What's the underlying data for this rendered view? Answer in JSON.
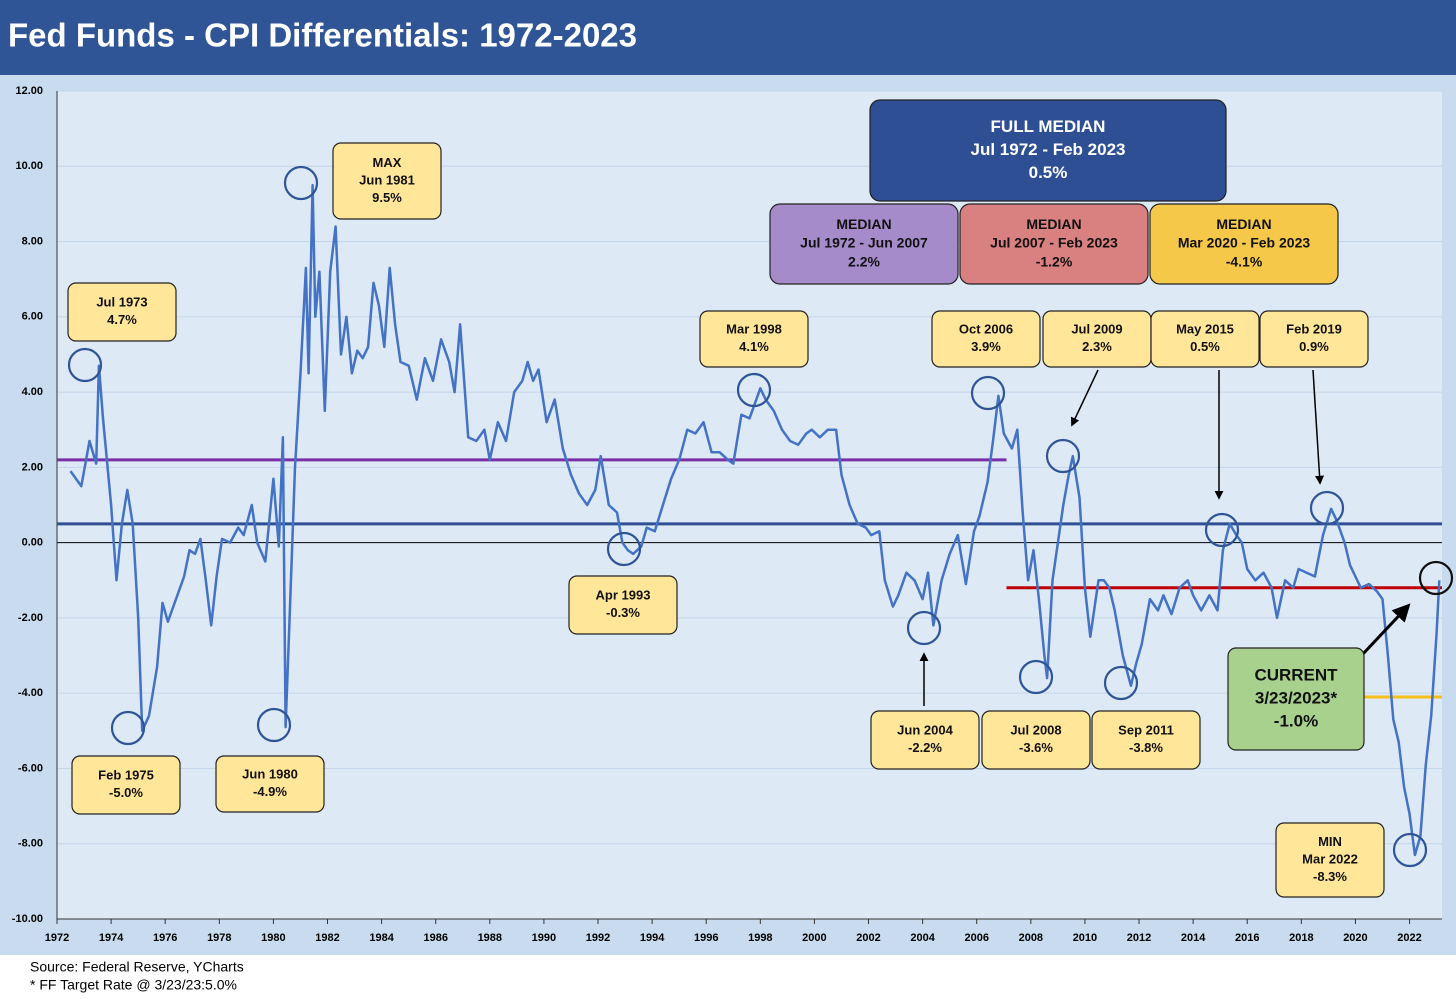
{
  "chart_data": {
    "type": "line",
    "title": "Fed Funds - CPI Differentials: 1972-2023",
    "color": "#4472c4",
    "xlim": [
      1972,
      2023.2
    ],
    "xticks": [
      1972,
      1974,
      1976,
      1978,
      1980,
      1982,
      1984,
      1986,
      1988,
      1990,
      1992,
      1994,
      1996,
      1998,
      2000,
      2002,
      2004,
      2006,
      2008,
      2010,
      2012,
      2014,
      2016,
      2018,
      2020,
      2022
    ],
    "ylim": [
      -10,
      12
    ],
    "yticks": [
      {
        "value": -10,
        "label": "-10.00"
      },
      {
        "value": -8,
        "label": "-8.00"
      },
      {
        "value": -6,
        "label": "-6.00"
      },
      {
        "value": -4,
        "label": "-4.00"
      },
      {
        "value": -2,
        "label": "-2.00"
      },
      {
        "value": 0,
        "label": "0.00"
      },
      {
        "value": 2,
        "label": "2.00"
      },
      {
        "value": 4,
        "label": "4.00"
      },
      {
        "value": 6,
        "label": "6.00"
      },
      {
        "value": 8,
        "label": "8.00"
      },
      {
        "value": 10,
        "label": "10.00"
      },
      {
        "value": 12,
        "label": "12.00"
      }
    ],
    "grid": true,
    "x": [
      1972.5,
      1972.9,
      1973.2,
      1973.45,
      1973.55,
      1973.7,
      1974.0,
      1974.2,
      1974.4,
      1974.6,
      1974.8,
      1975.0,
      1975.15,
      1975.4,
      1975.7,
      1975.9,
      1976.1,
      1976.4,
      1976.7,
      1976.9,
      1977.1,
      1977.3,
      1977.5,
      1977.7,
      1977.9,
      1978.1,
      1978.4,
      1978.7,
      1978.9,
      1979.2,
      1979.4,
      1979.7,
      1980.0,
      1980.2,
      1980.35,
      1980.45,
      1980.6,
      1980.8,
      1981.0,
      1981.2,
      1981.3,
      1981.45,
      1981.55,
      1981.7,
      1981.9,
      1982.1,
      1982.3,
      1982.5,
      1982.7,
      1982.9,
      1983.1,
      1983.3,
      1983.5,
      1983.7,
      1983.9,
      1984.1,
      1984.3,
      1984.5,
      1984.7,
      1985.0,
      1985.3,
      1985.6,
      1985.9,
      1986.2,
      1986.5,
      1986.7,
      1986.9,
      1987.2,
      1987.5,
      1987.8,
      1988.0,
      1988.3,
      1988.6,
      1988.9,
      1989.2,
      1989.4,
      1989.6,
      1989.8,
      1990.1,
      1990.4,
      1990.7,
      1991.0,
      1991.3,
      1991.6,
      1991.9,
      1992.1,
      1992.4,
      1992.7,
      1992.9,
      1993.1,
      1993.3,
      1993.6,
      1993.8,
      1994.1,
      1994.4,
      1994.7,
      1995.0,
      1995.3,
      1995.6,
      1995.9,
      1996.2,
      1996.5,
      1996.8,
      1997.0,
      1997.3,
      1997.6,
      1997.8,
      1998.0,
      1998.2,
      1998.5,
      1998.8,
      1999.1,
      1999.4,
      1999.7,
      1999.9,
      2000.2,
      2000.5,
      2000.8,
      2001.0,
      2001.3,
      2001.6,
      2001.9,
      2002.1,
      2002.4,
      2002.6,
      2002.9,
      2003.1,
      2003.4,
      2003.7,
      2004.0,
      2004.2,
      2004.4,
      2004.7,
      2005.0,
      2005.3,
      2005.6,
      2005.9,
      2006.1,
      2006.4,
      2006.6,
      2006.8,
      2007.0,
      2007.3,
      2007.5,
      2007.7,
      2007.9,
      2008.1,
      2008.3,
      2008.5,
      2008.6,
      2008.8,
      2009.0,
      2009.2,
      2009.4,
      2009.55,
      2009.8,
      2010.0,
      2010.2,
      2010.5,
      2010.7,
      2010.9,
      2011.1,
      2011.4,
      2011.7,
      2011.9,
      2012.1,
      2012.4,
      2012.7,
      2012.9,
      2013.2,
      2013.5,
      2013.8,
      2014.0,
      2014.3,
      2014.6,
      2014.9,
      2015.1,
      2015.35,
      2015.6,
      2015.8,
      2016.0,
      2016.3,
      2016.6,
      2016.9,
      2017.1,
      2017.4,
      2017.7,
      2017.9,
      2018.2,
      2018.5,
      2018.8,
      2019.1,
      2019.3,
      2019.6,
      2019.8,
      2020.0,
      2020.2,
      2020.5,
      2020.8,
      2021.0,
      2021.2,
      2021.4,
      2021.6,
      2021.8,
      2022.0,
      2022.2,
      2022.4,
      2022.6,
      2022.8,
      2023.0,
      2023.1
    ],
    "values": [
      1.9,
      1.5,
      2.7,
      2.1,
      4.7,
      3.3,
      1.0,
      -1.0,
      0.5,
      1.4,
      0.5,
      -2.0,
      -5.0,
      -4.6,
      -3.3,
      -1.6,
      -2.1,
      -1.5,
      -0.9,
      -0.2,
      -0.3,
      0.1,
      -1.0,
      -2.2,
      -0.9,
      0.1,
      0.0,
      0.4,
      0.2,
      1.0,
      0.0,
      -0.5,
      1.7,
      -0.1,
      2.8,
      -4.9,
      -2.0,
      2.0,
      4.5,
      7.3,
      4.5,
      9.5,
      6.0,
      7.2,
      3.5,
      7.2,
      8.4,
      5.0,
      6.0,
      4.5,
      5.1,
      4.9,
      5.2,
      6.9,
      6.3,
      5.2,
      7.3,
      5.8,
      4.8,
      4.7,
      3.8,
      4.9,
      4.3,
      5.4,
      4.8,
      4.0,
      5.8,
      2.8,
      2.7,
      3.0,
      2.2,
      3.2,
      2.7,
      4.0,
      4.3,
      4.8,
      4.3,
      4.6,
      3.2,
      3.8,
      2.5,
      1.8,
      1.3,
      1.0,
      1.4,
      2.3,
      1.0,
      0.8,
      0.0,
      -0.2,
      -0.3,
      -0.1,
      0.4,
      0.3,
      1.0,
      1.7,
      2.2,
      3.0,
      2.9,
      3.2,
      2.4,
      2.4,
      2.2,
      2.1,
      3.4,
      3.3,
      3.7,
      4.1,
      3.8,
      3.5,
      3.0,
      2.7,
      2.6,
      2.9,
      3.0,
      2.8,
      3.0,
      3.0,
      1.8,
      1.0,
      0.5,
      0.4,
      0.2,
      0.3,
      -1.0,
      -1.7,
      -1.4,
      -0.8,
      -1.0,
      -1.5,
      -0.8,
      -2.2,
      -1.0,
      -0.3,
      0.2,
      -1.1,
      0.3,
      0.7,
      1.6,
      2.7,
      3.9,
      2.9,
      2.5,
      3.0,
      0.8,
      -1.0,
      -0.2,
      -1.5,
      -3.0,
      -3.6,
      -1.0,
      0.0,
      1.0,
      1.8,
      2.3,
      1.2,
      -1.2,
      -2.5,
      -1.0,
      -1.0,
      -1.2,
      -1.8,
      -3.0,
      -3.8,
      -3.2,
      -2.7,
      -1.5,
      -1.8,
      -1.4,
      -1.9,
      -1.2,
      -1.0,
      -1.4,
      -1.8,
      -1.4,
      -1.8,
      -0.2,
      0.5,
      0.2,
      0.0,
      -0.7,
      -1.0,
      -0.8,
      -1.2,
      -2.0,
      -1.0,
      -1.2,
      -0.7,
      -0.8,
      -0.9,
      0.2,
      0.9,
      0.6,
      0.0,
      -0.6,
      -0.9,
      -1.2,
      -1.1,
      -1.3,
      -1.5,
      -3.0,
      -4.7,
      -5.3,
      -6.5,
      -7.2,
      -8.3,
      -7.8,
      -5.9,
      -4.6,
      -2.4,
      -1.0
    ],
    "reference_lines": [
      {
        "value": 2.2,
        "start": 1972,
        "end": 2007.1,
        "color": "#7a2fa8"
      },
      {
        "value": 0.5,
        "start": 1972,
        "end": 2023.2,
        "color": "#2e4f94"
      },
      {
        "value": -1.2,
        "start": 2007.1,
        "end": 2023.2,
        "color": "#c00000"
      },
      {
        "value": -4.1,
        "start": 2020.2,
        "end": 2023.2,
        "color": "#f5c01a"
      }
    ],
    "medians": [
      {
        "lines": [
          "FULL MEDIAN",
          "Jul 1972 - Feb 2023",
          "0.5%"
        ],
        "color": "#2e4f94"
      },
      {
        "lines": [
          "MEDIAN",
          "Jul 1972 - Jun 2007",
          "2.2%"
        ],
        "color": "#a68bcb"
      },
      {
        "lines": [
          "MEDIAN",
          "Jul 2007 - Feb 2023",
          "-1.2%"
        ],
        "color": "#d98080"
      },
      {
        "lines": [
          "MEDIAN",
          "Mar 2020 - Feb 2023",
          "-4.1%"
        ],
        "color": "#f5c84a"
      }
    ],
    "annotations": [
      {
        "lines": [
          "Jul 1973",
          "4.7%"
        ]
      },
      {
        "lines": [
          "Feb 1975",
          "-5.0%"
        ]
      },
      {
        "lines": [
          "Jun 1980",
          "-4.9%"
        ]
      },
      {
        "lines": [
          "MAX",
          "Jun 1981",
          "9.5%"
        ]
      },
      {
        "lines": [
          "Apr 1993",
          "-0.3%"
        ]
      },
      {
        "lines": [
          "Mar 1998",
          "4.1%"
        ]
      },
      {
        "lines": [
          "Jun 2004",
          "-2.2%"
        ]
      },
      {
        "lines": [
          "Oct 2006",
          "3.9%"
        ]
      },
      {
        "lines": [
          "Jul 2008",
          "-3.6%"
        ]
      },
      {
        "lines": [
          "Jul 2009",
          "2.3%"
        ]
      },
      {
        "lines": [
          "Sep 2011",
          "-3.8%"
        ]
      },
      {
        "lines": [
          "May 2015",
          "0.5%"
        ]
      },
      {
        "lines": [
          "Feb 2019",
          "0.9%"
        ]
      },
      {
        "lines": [
          "MIN",
          "Mar 2022",
          "-8.3%"
        ]
      },
      {
        "lines": [
          "CURRENT",
          "3/23/2023*",
          "-1.0%"
        ]
      }
    ],
    "notes": [
      "Source: Federal Reserve, YCharts",
      "* FF Target Rate @ 3/23/23:5.0%"
    ]
  }
}
